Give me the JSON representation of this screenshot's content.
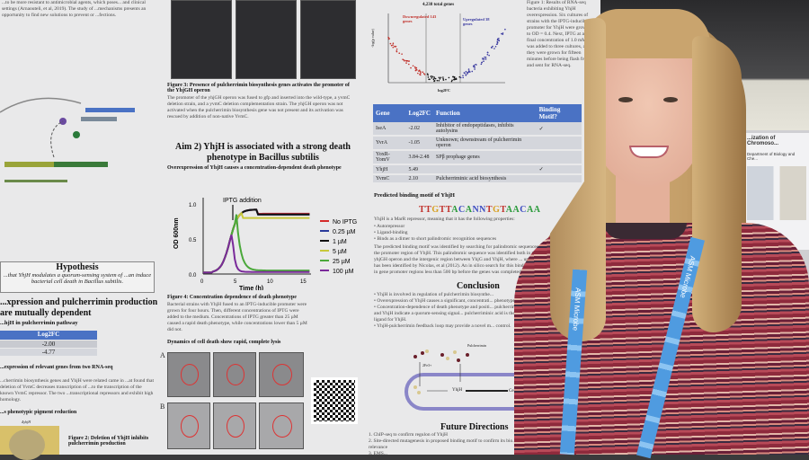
{
  "poster": {
    "col1": {
      "intro": "...to be more resistant to antimicrobial agents, which poses... and clinical settings (Arnaouteli, et al, 2019). The study of ...mechanisms presents an opportunity to find new solutions to prevent or ...fections.",
      "hypothesis_title": "Hypothesis",
      "hypothesis_text": "...that YhjH modulates a quorum-sensing system of ...an induce bacterial cell death in Bacillus subtilis.",
      "section_title": "...xpression and pulcherrimin production are mutually dependent",
      "section_sub": "...hjH in pulcherrimin pathway",
      "table": {
        "header": "Log2FC",
        "values": [
          "-2.00",
          "-4.77"
        ]
      },
      "table_caption": "...expression of relevant genes from two RNA-seq",
      "body": "...cherrimin biosynthesis genes and YhjH were related came in ...at found that deletion of YvmC decreases transcription of ...to the transcription of the known YvmC repressor. The two ...transcriptional repressors and exhibit high homology.",
      "pigment_title": "...s phenotypic pigment reduction",
      "pigment_label": "ΔyhjH",
      "fig2": "Figure 2: Deletion of YhjH inhibits pulcherrimin production"
    },
    "col2": {
      "fig3_title": "Figure 3: Presence of pulcherrimin biosynthesis genes activates the promoter of the YhjGH operon",
      "fig3_text": "The promoter of the yhjGH operon was fused to gfp and inserted into the wild-type, a yvmC deletion strain, and a yvmC deletion complementation strain. The yhjGH operon was not activated when the pulcherrimin biosynthesis gene was not present and its activation was rescued by addition of non-native YvmC.",
      "aim2": "Aim 2) YhjH is associated with a strong death phenotype in Bacillus subtilis",
      "aim2_sub": "Overexpression of YhjH causes a concentration-dependent death phenotype",
      "figure4": {
        "annotation": "IPTG addition",
        "ylabel": "OD 600nm",
        "xlabel": "Time (h)",
        "yticks": [
          "0.0",
          "0.5",
          "1.0"
        ],
        "xticks": [
          "0",
          "5",
          "10",
          "15"
        ],
        "legend": [
          {
            "name": "No IPTG",
            "color": "#d42a2a"
          },
          {
            "name": "0.25 µM",
            "color": "#2a3a9a"
          },
          {
            "name": "1 µM",
            "color": "#111111"
          },
          {
            "name": "5 µM",
            "color": "#c8c83a"
          },
          {
            "name": "25 µM",
            "color": "#4aa83a"
          },
          {
            "name": "100 µM",
            "color": "#7a2a9a"
          }
        ]
      },
      "fig4_title": "Figure 4: Concentration dependence of death phenotype",
      "fig4_text": "Bacterial strains with YhjH fused to an IPTG-inducible promoter were grown for four hours. Then, different concentrations of IPTG were added to the medium. Concentrations of IPTG greater than 25 µM caused a rapid death phenotype, while concentrations lower than 5 µM did not.",
      "dynamics": "Dynamics of cell death show rapid, complete lysis",
      "panel_a": "A",
      "panel_b": "B"
    },
    "col3": {
      "volcano_title": "4,238 total genes",
      "down": "Downregulated 143 genes",
      "up": "Upregulated 38 genes",
      "volcano_x": "log2FC",
      "volcano_y": "-log(p value)",
      "table_headers": [
        "Gene",
        "Log2FC",
        "Function",
        "Binding Motif?"
      ],
      "table_rows": [
        {
          "gene": "IseA",
          "fc": "-2.02",
          "fn": "Inhibitor of endopeptidases, inhibits autolysins",
          "motif": "✓"
        },
        {
          "gene": "YvrA",
          "fc": "-1.05",
          "fn": "Unknown; downstream of pulcherrimin operon",
          "motif": ""
        },
        {
          "gene": "YoxR-YomV",
          "fc": "3.84-2.48",
          "fn": "SPβ prophage genes",
          "motif": ""
        },
        {
          "gene": "YhjH",
          "fc": "5.49",
          "fn": "",
          "motif": "✓"
        },
        {
          "gene": "YvmC",
          "fc": "2.10",
          "fn": "Pulcherriminic acid biosynthesis",
          "motif": ""
        }
      ],
      "motif_title": "Predicted binding motif of YhjH",
      "motif": "TTGTTACANNTGTAACAA",
      "motif_text": "YhjH is a MarR repressor, meaning that it has the following properties:",
      "motif_bullets": [
        "Autorepressor",
        "Ligand-binding",
        "Binds as a dimer to short palindromic recognition sequences"
      ],
      "motif_body": "The predicted binding motif was identified by searching for palindromic sequences in the promoter region of YhjH. This palindromic sequence was identified both in the yhjGH operon and the intergenic region between YhjG and YhjH, where ... upshift has been identified by Nicolas, et al (2012). An in silico search for this binding motif in gene promoter regions less than 500 bp before the genes was completed.",
      "conclusion_title": "Conclusion",
      "conclusion_bullets": [
        "YhjH is involved in regulation of pulcherrimin biosynthe...",
        "Overexpression of YhjH causes a significant, concentrati... phenotype.",
        "Concentration-dependence of death phenotype and positi... pulcherrimin and YhjH indicate a quorum-sensing signal... pulcherriminic acid is the ligand for YhjH.",
        "YhjH-pulcherrimin feedback loop may provide a novel m... control."
      ],
      "diagram_pulcherrimin": "Pulcherrimin",
      "diagram_fe": "2Fe3+",
      "diagram_yhjh": "YhjH",
      "diagram_death": "Cell de...",
      "future_title": "Future Directions",
      "future_items": [
        "ChIP-seq to confirm regulon of YhjH",
        "Site-directed mutagenesis in proposed binding motif to confirm its bio... relevance",
        "EMS..."
      ]
    },
    "col4": {
      "caption": "Figure 1: Results of RNA-seq bacteria exhibiting YhjH overexpression. Six cultures of strains with the IPTG-inducible promoter for YhjH were grown to OD = 0.4. Next, IPTG at a final concentration of 1.0 mM was added to three cultures, and they were grown for fifteen minutes before being flash frozen and sent for RNA-seq."
    }
  },
  "background_poster": {
    "title": "...ization of Chromoso...",
    "dept": "Department of Biology and Che..."
  },
  "lanyard_text": "ASM Microbe"
}
